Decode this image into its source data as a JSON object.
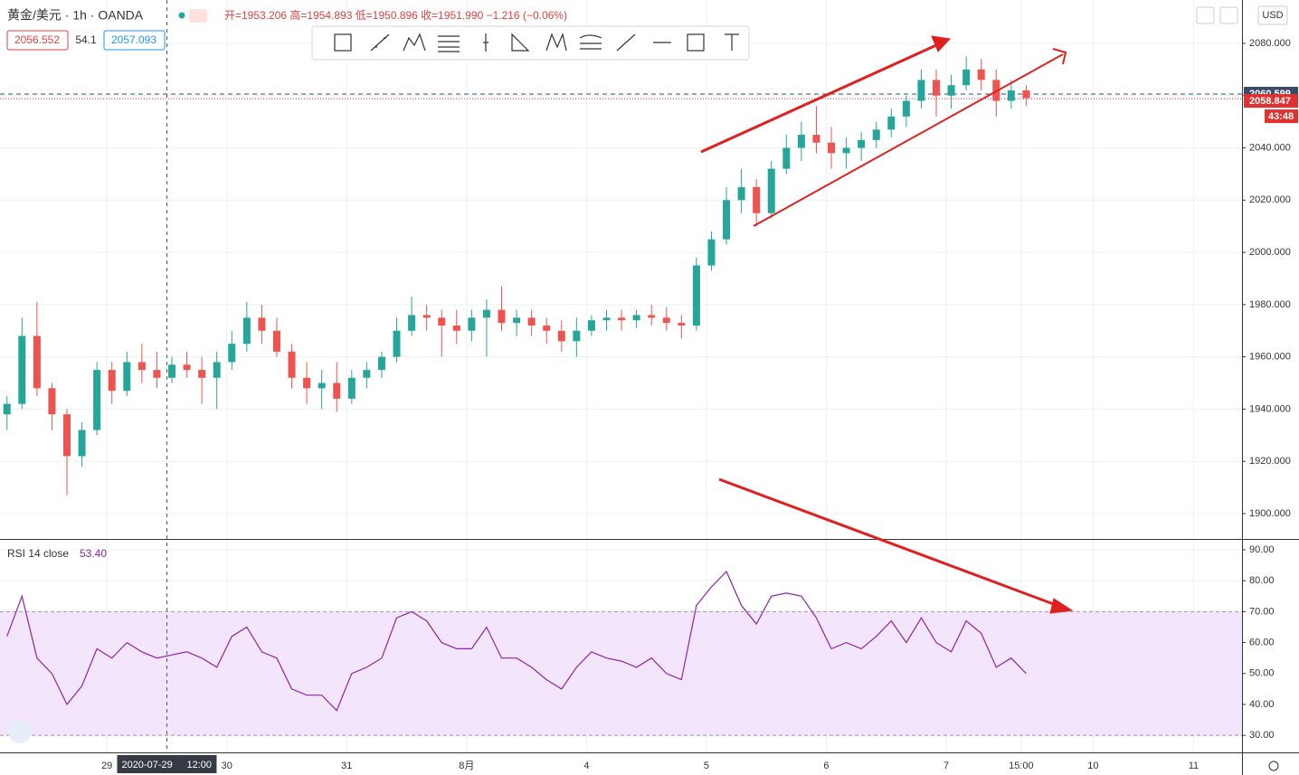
{
  "header": {
    "symbol": "黄金/美元 · 1h · OANDA",
    "ohlc": "开=1953.206 高=1954.893 低=1950.896 收=1951.990 −1.216 (−0.06%)",
    "bid": "2056.552",
    "spread": "54.1",
    "ask": "2057.093",
    "currency": "USD"
  },
  "chart_data": [
    {
      "type": "candlestick",
      "x": [
        4,
        7,
        10,
        13,
        16,
        19,
        22,
        25,
        28,
        31,
        34,
        37,
        40,
        43,
        46,
        49,
        52,
        55,
        58,
        61,
        64,
        67,
        70,
        73,
        76,
        79,
        82,
        85,
        88,
        91,
        94,
        97,
        100,
        103,
        106,
        109,
        112,
        115,
        118,
        121,
        124,
        127,
        130,
        133,
        136,
        139,
        142,
        145,
        148,
        151,
        154,
        157,
        160,
        163,
        166,
        169,
        172,
        175,
        178,
        181,
        184,
        187,
        190,
        193,
        196,
        199,
        202,
        205,
        208
      ],
      "open": [
        1938,
        1942,
        1968,
        1948,
        1938,
        1922,
        1932,
        1955,
        1947,
        1958,
        1955,
        1952,
        1957,
        1955,
        1952,
        1958,
        1965,
        1975,
        1970,
        1962,
        1952,
        1948,
        1950,
        1944,
        1952,
        1955,
        1960,
        1970,
        1976,
        1975,
        1972,
        1970,
        1975,
        1978,
        1973,
        1975,
        1972,
        1970,
        1966,
        1970,
        1974,
        1975,
        1974,
        1976,
        1975,
        1973,
        1972,
        1995,
        2005,
        2020,
        2025,
        2015,
        2032,
        2040,
        2045,
        2042,
        2038,
        2040,
        2043,
        2047,
        2052,
        2058,
        2066,
        2060,
        2064,
        2070,
        2066,
        2058,
        2062
      ],
      "high": [
        1945,
        1975,
        1981,
        1950,
        1940,
        1935,
        1958,
        1958,
        1962,
        1965,
        1962,
        1960,
        1962,
        1960,
        1962,
        1970,
        1981,
        1980,
        1975,
        1965,
        1958,
        1955,
        1958,
        1955,
        1958,
        1962,
        1975,
        1983,
        1980,
        1978,
        1978,
        1978,
        1982,
        1987,
        1978,
        1978,
        1975,
        1974,
        1975,
        1976,
        1978,
        1978,
        1978,
        1980,
        1979,
        1976,
        1998,
        2008,
        2025,
        2032,
        2028,
        2035,
        2045,
        2050,
        2056,
        2048,
        2044,
        2046,
        2050,
        2055,
        2060,
        2070,
        2070,
        2068,
        2075,
        2074,
        2070,
        2066,
        2064
      ],
      "low": [
        1932,
        1940,
        1945,
        1932,
        1907,
        1918,
        1930,
        1942,
        1945,
        1950,
        1948,
        1950,
        1952,
        1942,
        1940,
        1955,
        1962,
        1965,
        1960,
        1948,
        1942,
        1940,
        1939,
        1942,
        1948,
        1952,
        1958,
        1968,
        1970,
        1960,
        1965,
        1966,
        1960,
        1970,
        1968,
        1968,
        1965,
        1962,
        1960,
        1968,
        1970,
        1970,
        1971,
        1972,
        1970,
        1967,
        1970,
        1993,
        2003,
        2015,
        2010,
        2013,
        2030,
        2035,
        2038,
        2032,
        2032,
        2035,
        2040,
        2044,
        2048,
        2055,
        2052,
        2055,
        2062,
        2062,
        2052,
        2055,
        2056
      ],
      "close": [
        1942,
        1968,
        1948,
        1938,
        1922,
        1932,
        1955,
        1947,
        1958,
        1955,
        1952,
        1957,
        1955,
        1952,
        1958,
        1965,
        1975,
        1970,
        1962,
        1952,
        1948,
        1950,
        1944,
        1952,
        1955,
        1960,
        1970,
        1976,
        1975,
        1972,
        1970,
        1975,
        1978,
        1973,
        1975,
        1972,
        1970,
        1966,
        1970,
        1974,
        1975,
        1974,
        1976,
        1975,
        1973,
        1972,
        1995,
        2005,
        2020,
        2025,
        2015,
        2032,
        2040,
        2045,
        2042,
        2038,
        2040,
        2043,
        2047,
        2052,
        2058,
        2066,
        2060,
        2064,
        2070,
        2066,
        2058,
        2062,
        2059
      ],
      "up_color": "#26a69a",
      "down_color": "#ef5350",
      "xlim": [
        2.6,
        251.2
      ],
      "ylim": [
        1890.3,
        2096.6
      ],
      "yticks": [
        {
          "value": 1900,
          "label": "1900.000"
        },
        {
          "value": 1920,
          "label": "1920.000"
        },
        {
          "value": 1940,
          "label": "1940.000"
        },
        {
          "value": 1960,
          "label": "1960.000"
        },
        {
          "value": 1980,
          "label": "1980.000"
        },
        {
          "value": 2000,
          "label": "2000.000"
        },
        {
          "value": 2020,
          "label": "2020.000"
        },
        {
          "value": 2040,
          "label": "2040.000"
        },
        {
          "value": 2060,
          "label": "2060.000"
        },
        {
          "value": 2080,
          "label": "2080.000"
        }
      ],
      "xticks": [
        {
          "value": 24,
          "label": "29"
        },
        {
          "value": 48,
          "label": "30"
        },
        {
          "value": 72,
          "label": "31"
        },
        {
          "value": 96,
          "label": "8月"
        },
        {
          "value": 120,
          "label": "4"
        },
        {
          "value": 144,
          "label": "5"
        },
        {
          "value": 168,
          "label": "6"
        },
        {
          "value": 192,
          "label": "7"
        },
        {
          "value": 207,
          "label": "15:00"
        },
        {
          "value": 221.4,
          "label": "10"
        },
        {
          "value": 241.5,
          "label": "11"
        }
      ],
      "grid": true,
      "price_lines": [
        {
          "value": 2060.599,
          "label": "2060.599",
          "color": "#3a4a6b"
        },
        {
          "value": 2058.847,
          "label": "2058.847",
          "color": "#e03030"
        }
      ],
      "countdown": "43:48",
      "crosshair": {
        "value": 36,
        "date": "2020-07-29",
        "time": "12:00"
      }
    },
    {
      "type": "line",
      "title": "RSI 14 close",
      "legend_value": "53.40",
      "color": "#8e24aa",
      "x": [
        4,
        7,
        10,
        13,
        16,
        19,
        22,
        25,
        28,
        31,
        34,
        37,
        40,
        43,
        46,
        49,
        52,
        55,
        58,
        61,
        64,
        67,
        70,
        73,
        76,
        79,
        82,
        85,
        88,
        91,
        94,
        97,
        100,
        103,
        106,
        109,
        112,
        115,
        118,
        121,
        124,
        127,
        130,
        133,
        136,
        139,
        142,
        145,
        148,
        151,
        154,
        157,
        160,
        163,
        166,
        169,
        172,
        175,
        178,
        181,
        184,
        187,
        190,
        193,
        196,
        199,
        202,
        205,
        208
      ],
      "values": [
        62,
        75,
        55,
        50,
        40,
        46,
        58,
        55,
        60,
        57,
        55,
        56,
        57,
        55,
        52,
        62,
        65,
        57,
        55,
        45,
        43,
        43,
        38,
        50,
        52,
        55,
        68,
        70,
        67,
        60,
        58,
        58,
        65,
        55,
        55,
        52,
        48,
        45,
        52,
        57,
        55,
        54,
        52,
        55,
        50,
        48,
        72,
        78,
        83,
        72,
        66,
        75,
        76,
        75,
        68,
        58,
        60,
        58,
        62,
        67,
        60,
        68,
        60,
        57,
        67,
        63,
        52,
        55,
        50
      ],
      "ylim": [
        24.5,
        93.2
      ],
      "yticks": [
        {
          "value": 30,
          "label": "30.00"
        },
        {
          "value": 40,
          "label": "40.00"
        },
        {
          "value": 50,
          "label": "50.00"
        },
        {
          "value": 60,
          "label": "60.00"
        },
        {
          "value": 70,
          "label": "70.00"
        },
        {
          "value": 80,
          "label": "80.00"
        },
        {
          "value": 90,
          "label": "90.00"
        }
      ],
      "band": [
        30,
        70
      ],
      "band_color": "#f3e5fc"
    }
  ]
}
